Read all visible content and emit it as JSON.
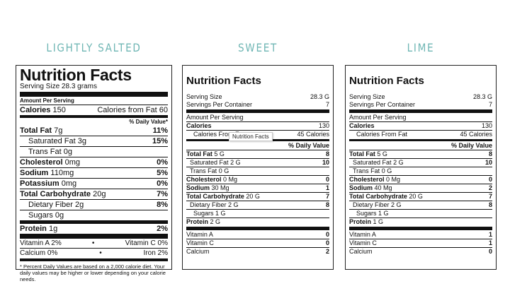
{
  "flavors": {
    "left": "LIGHTLY SALTED",
    "middle": "SWEET",
    "right": "LIME"
  },
  "label1": {
    "title": "Nutrition Facts",
    "serving": "Serving Size 28.3 grams",
    "amount_per": "Amount Per Serving",
    "calories_label": "Calories",
    "calories_value": "150",
    "calories_fat": "Calories from Fat 60",
    "dv_header": "% Daily Value*",
    "rows": [
      {
        "label": "Total Fat",
        "amount": "7g",
        "dv": "11%"
      },
      {
        "label": "Saturated Fat",
        "amount": "3g",
        "dv": "15%"
      },
      {
        "label": "Trans Fat",
        "amount": "0g",
        "dv": ""
      },
      {
        "label": "Cholesterol",
        "amount": "0mg",
        "dv": "0%"
      },
      {
        "label": "Sodium",
        "amount": "110mg",
        "dv": "5%"
      },
      {
        "label": "Potassium",
        "amount": "0mg",
        "dv": "0%"
      },
      {
        "label": "Total Carbohydrate",
        "amount": "20g",
        "dv": "7%"
      },
      {
        "label": "Dietary Fiber",
        "amount": "2g",
        "dv": "8%"
      },
      {
        "label": "Sugars",
        "amount": "0g",
        "dv": ""
      },
      {
        "label": "Protein",
        "amount": "1g",
        "dv": "2%"
      }
    ],
    "vitamins": [
      {
        "left": "Vitamin A  2%",
        "right": "Vitamin C  0%"
      },
      {
        "left": "Calcium  0%",
        "right": "Iron  2%"
      }
    ],
    "bullet": "•",
    "footnote": "* Percent Daily Values are based on a 2,000 calorie diet. Your daily values may be higher or lower depending on your calorie needs."
  },
  "label2": {
    "title": "Nutrition Facts",
    "serving_size_label": "Serving Size",
    "serving_size_value": "28.3 G",
    "servings_label": "Servings Per Container",
    "servings_value": "7",
    "amount_per": "Amount Per Serving",
    "calories_label": "Calories",
    "calories_value": "130",
    "cff_label": "Calories From Fat",
    "cff_value": "45 Calories",
    "dv_header": "% Daily Value",
    "rows": [
      {
        "label": "Total Fat",
        "amount": "5 G",
        "dv": "8"
      },
      {
        "label": "Saturated Fat",
        "amount": "2 G",
        "dv": "10"
      },
      {
        "label": "Trans Fat",
        "amount": "0 G",
        "dv": ""
      },
      {
        "label": "Cholesterol",
        "amount": "0 Mg",
        "dv": "0"
      },
      {
        "label": "Sodium",
        "amount": "30 Mg",
        "dv": "1"
      },
      {
        "label": "Total Carbohydrate",
        "amount": "20 G",
        "dv": "7"
      },
      {
        "label": "Dietary Fiber",
        "amount": "2 G",
        "dv": "8"
      },
      {
        "label": "Sugars",
        "amount": "1 G",
        "dv": ""
      },
      {
        "label": "Protein",
        "amount": "2 G",
        "dv": ""
      }
    ],
    "vitamins": [
      {
        "label": "Vitamin A",
        "value": "0"
      },
      {
        "label": "Vitamin C",
        "value": "0"
      },
      {
        "label": "Calcium",
        "value": "2"
      }
    ],
    "tooltip": "Nutrition Facts"
  },
  "label3": {
    "title": "Nutrition Facts",
    "serving_size_label": "Serving Size",
    "serving_size_value": "28.3 G",
    "servings_label": "Servings Per Container",
    "servings_value": "7",
    "amount_per": "Amount Per Serving",
    "calories_label": "Calories",
    "calories_value": "130",
    "cff_label": "Calories From Fat",
    "cff_value": "45 Calories",
    "dv_header": "% Daily Value",
    "rows": [
      {
        "label": "Total Fat",
        "amount": "5 G",
        "dv": "8"
      },
      {
        "label": "Saturated Fat",
        "amount": "2 G",
        "dv": "10"
      },
      {
        "label": "Trans Fat",
        "amount": "0 G",
        "dv": ""
      },
      {
        "label": "Cholesterol",
        "amount": "0 Mg",
        "dv": "0"
      },
      {
        "label": "Sodium",
        "amount": "40 Mg",
        "dv": "2"
      },
      {
        "label": "Total Carbohydrate",
        "amount": "20 G",
        "dv": "7"
      },
      {
        "label": "Dietary Fiber",
        "amount": "2 G",
        "dv": "8"
      },
      {
        "label": "Sugars",
        "amount": "1 G",
        "dv": ""
      },
      {
        "label": "Protein",
        "amount": "1 G",
        "dv": ""
      }
    ],
    "vitamins": [
      {
        "label": "Vitamin A",
        "value": "1"
      },
      {
        "label": "Vitamin C",
        "value": "1"
      },
      {
        "label": "Calcium",
        "value": "0"
      }
    ]
  }
}
